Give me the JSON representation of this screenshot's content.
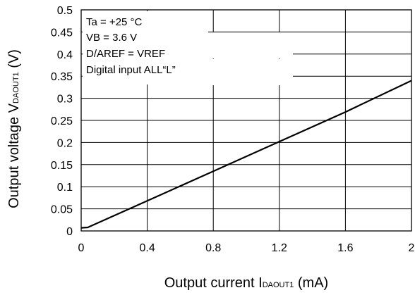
{
  "chart_data": {
    "type": "line",
    "x_ticks": [
      "0",
      "0.4",
      "0.8",
      "1.2",
      "1.6",
      "2"
    ],
    "y_ticks": [
      "0",
      "0.05",
      "0.1",
      "0.15",
      "0.2",
      "0.25",
      "0.3",
      "0.35",
      "0.4",
      "0.45",
      "0.5"
    ],
    "xlim": [
      0,
      2
    ],
    "ylim": [
      0,
      0.5
    ],
    "xlabel": {
      "main": "Output current I",
      "sub": "DAOUT1",
      "unit": " (mA)"
    },
    "ylabel": {
      "main": "Output voltage V",
      "sub": "DAOUT1",
      "unit": " (V)"
    },
    "annotations": [
      "Ta = +25 °C",
      "VB = 3.6 V",
      "D/AREF = VREF",
      "Digital input ALL“L”"
    ],
    "grid": true,
    "series": [
      {
        "x": [
          0,
          0.04,
          0.4,
          0.8,
          1.2,
          1.6,
          2.0
        ],
        "y": [
          0.007,
          0.008,
          0.068,
          0.135,
          0.202,
          0.269,
          0.34
        ]
      }
    ],
    "colors": {
      "line": "#000000",
      "grid": "#000000"
    }
  }
}
